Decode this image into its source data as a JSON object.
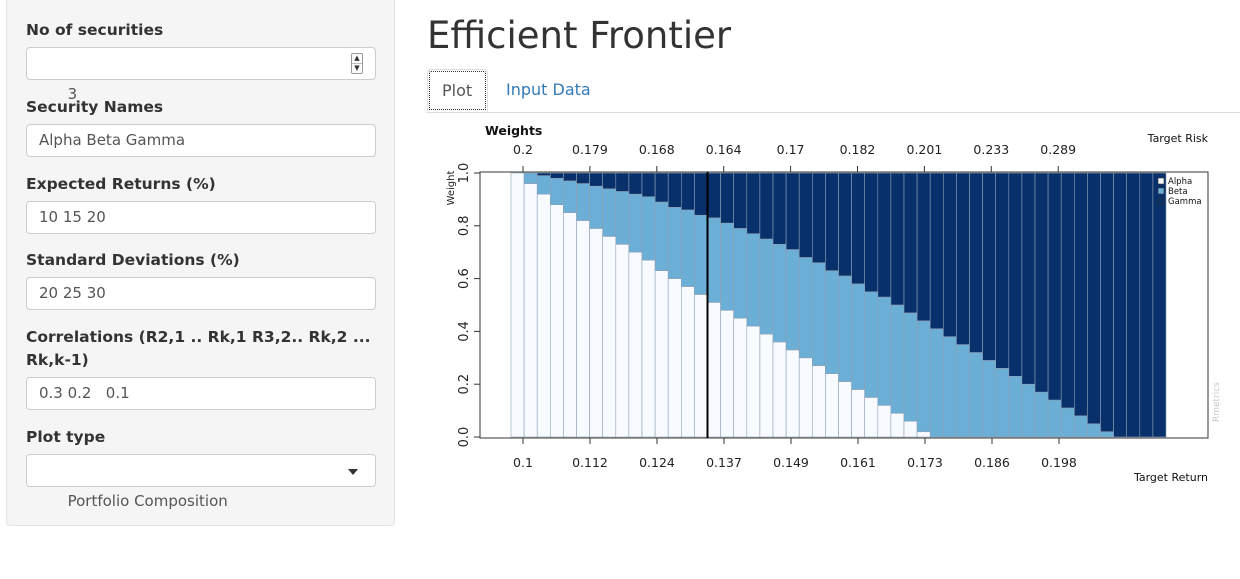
{
  "sidebar": {
    "fields": [
      {
        "label": "No of securities",
        "value": "3",
        "kind": "number"
      },
      {
        "label": "Security Names",
        "value": "Alpha Beta Gamma",
        "kind": "text"
      },
      {
        "label": "Expected Returns (%)",
        "value": "10 15 20",
        "kind": "text"
      },
      {
        "label": "Standard Deviations (%)",
        "value": "20 25 30",
        "kind": "text"
      },
      {
        "label": "Correlations (R2,1 .. Rk,1 R3,2.. Rk,2 ...",
        "label2": "Rk,k-1)",
        "value": "0.3 0.2   0.1",
        "kind": "text"
      },
      {
        "label": "Plot type",
        "value": "Portfolio Composition",
        "kind": "select"
      }
    ]
  },
  "main": {
    "title": "Efficient Frontier",
    "tabs": [
      {
        "label": "Plot",
        "active": true
      },
      {
        "label": "Input Data",
        "active": false
      }
    ]
  },
  "colors": {
    "alpha": "#f7fbff",
    "beta": "#6baed6",
    "gamma": "#08306b",
    "link": "#337ab7"
  },
  "chart_data": {
    "type": "bar",
    "stacked": true,
    "title": "Weights",
    "ylabel": "Weight",
    "top_axis_label": "Target Risk",
    "bottom_axis_label": "Target Return",
    "watermark": "Rmetrics",
    "ylim": [
      0,
      1
    ],
    "y_ticks": [
      "0.0",
      "0.2",
      "0.4",
      "0.6",
      "0.8",
      "1.0"
    ],
    "top_tick_labels": [
      "0.2",
      "0.179",
      "0.168",
      "0.164",
      "0.17",
      "0.182",
      "0.201",
      "0.233",
      "0.289"
    ],
    "bottom_tick_labels": [
      "0.1",
      "0.112",
      "0.124",
      "0.137",
      "0.149",
      "0.161",
      "0.173",
      "0.186",
      "0.198"
    ],
    "min_variance_portfolio_index": 15,
    "legend": [
      "Alpha",
      "Beta",
      "Gamma"
    ],
    "series": [
      {
        "name": "Alpha",
        "values": [
          1,
          0.96,
          0.92,
          0.88,
          0.85,
          0.82,
          0.79,
          0.76,
          0.73,
          0.7,
          0.67,
          0.63,
          0.6,
          0.57,
          0.54,
          0.51,
          0.48,
          0.45,
          0.42,
          0.39,
          0.36,
          0.33,
          0.3,
          0.27,
          0.24,
          0.21,
          0.18,
          0.15,
          0.12,
          0.09,
          0.06,
          0.02,
          0,
          0,
          0,
          0,
          0,
          0,
          0,
          0,
          0,
          0,
          0,
          0,
          0,
          0,
          0,
          0,
          0,
          0
        ]
      },
      {
        "name": "Beta",
        "values": [
          0,
          0.04,
          0.07,
          0.1,
          0.12,
          0.14,
          0.16,
          0.18,
          0.2,
          0.22,
          0.24,
          0.26,
          0.27,
          0.29,
          0.3,
          0.32,
          0.33,
          0.34,
          0.35,
          0.36,
          0.37,
          0.38,
          0.38,
          0.39,
          0.39,
          0.4,
          0.4,
          0.4,
          0.41,
          0.41,
          0.41,
          0.42,
          0.41,
          0.38,
          0.35,
          0.32,
          0.29,
          0.26,
          0.23,
          0.2,
          0.17,
          0.14,
          0.11,
          0.08,
          0.05,
          0.02,
          0,
          0,
          0,
          0
        ]
      },
      {
        "name": "Gamma",
        "values": [
          0,
          0,
          0.01,
          0.02,
          0.03,
          0.04,
          0.05,
          0.06,
          0.07,
          0.08,
          0.09,
          0.11,
          0.13,
          0.14,
          0.16,
          0.17,
          0.19,
          0.21,
          0.23,
          0.25,
          0.27,
          0.29,
          0.32,
          0.34,
          0.37,
          0.39,
          0.42,
          0.45,
          0.47,
          0.5,
          0.53,
          0.56,
          0.59,
          0.62,
          0.65,
          0.68,
          0.71,
          0.74,
          0.77,
          0.8,
          0.83,
          0.86,
          0.89,
          0.92,
          0.95,
          0.98,
          1,
          1,
          1,
          1
        ]
      }
    ]
  }
}
